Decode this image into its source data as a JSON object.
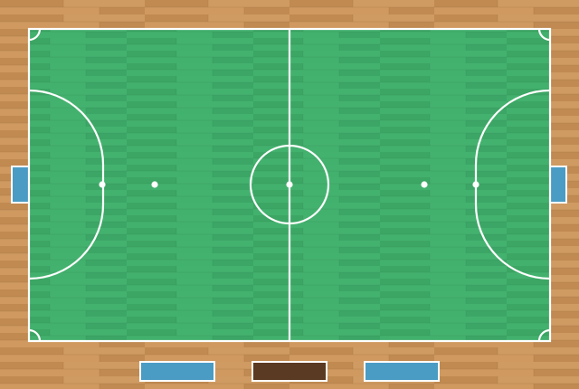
{
  "court": {
    "floor_color": "#c9935a",
    "floor_plank_dark": "#b88249",
    "floor_plank_light": "#d6a36a",
    "playing_surface_color": "#3fae6a",
    "surface_plank_dark": "#379c5e",
    "surface_plank_light": "#4dbb77",
    "line_color": "#ffffff",
    "goal_color": "#4a9cc4",
    "features": [
      "boundary-lines",
      "halfway-line",
      "center-circle",
      "center-spot",
      "penalty-areas",
      "penalty-spots",
      "second-penalty-spots",
      "corner-arcs",
      "goals"
    ]
  },
  "benches": [
    {
      "name": "left-bench",
      "color": "#4a9cc4"
    },
    {
      "name": "officials-table",
      "color": "#5a3a22"
    },
    {
      "name": "right-bench",
      "color": "#4a9cc4"
    }
  ]
}
